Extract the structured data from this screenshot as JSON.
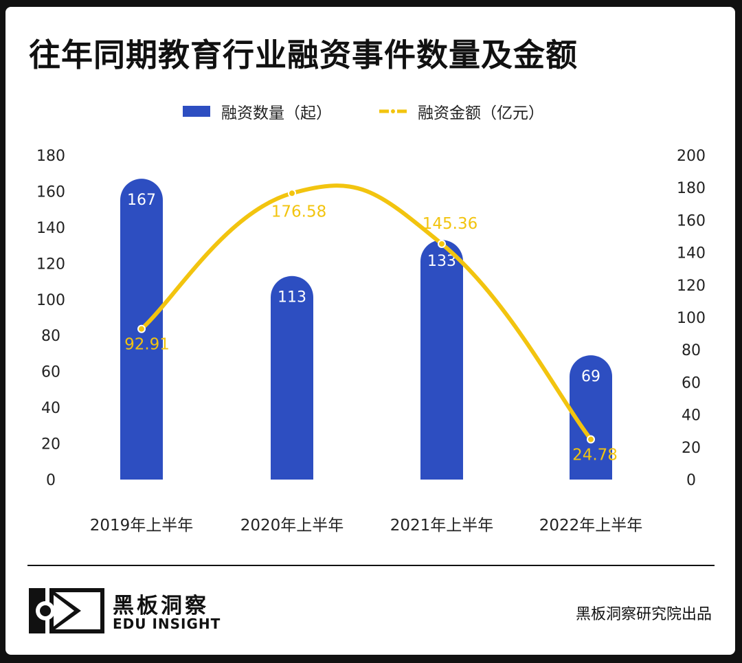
{
  "title": "往年同期教育行业融资事件数量及金额",
  "colors": {
    "bar": "#2d4ec1",
    "line": "#f2c40f",
    "text": "#111111"
  },
  "chart_data": {
    "type": "bar",
    "categories": [
      "2019年上半年",
      "2020年上半年",
      "2021年上半年",
      "2022年上半年"
    ],
    "series": [
      {
        "name": "融资数量（起）",
        "type": "bar",
        "axis": "left",
        "values": [
          167,
          113,
          133,
          69
        ]
      },
      {
        "name": "融资金额（亿元）",
        "type": "line",
        "axis": "right",
        "values": [
          92.91,
          176.58,
          145.36,
          24.78
        ]
      }
    ],
    "y_left": {
      "min": 0,
      "max": 180,
      "step": 20,
      "ticks": [
        "0",
        "20",
        "40",
        "60",
        "80",
        "100",
        "120",
        "140",
        "160",
        "180"
      ]
    },
    "y_right": {
      "min": 0,
      "max": 200,
      "step": 20,
      "ticks": [
        "0",
        "20",
        "40",
        "60",
        "80",
        "100",
        "120",
        "140",
        "160",
        "180",
        "200"
      ]
    },
    "bar_labels": [
      "167",
      "113",
      "133",
      "69"
    ],
    "line_labels": [
      "92.91",
      "176.58",
      "145.36",
      "24.78"
    ],
    "legend_position": "top-center",
    "grid": false
  },
  "footer": {
    "brand_cn": "黑板洞察",
    "brand_en": "EDU INSIGHT",
    "credit": "黑板洞察研究院出品"
  }
}
